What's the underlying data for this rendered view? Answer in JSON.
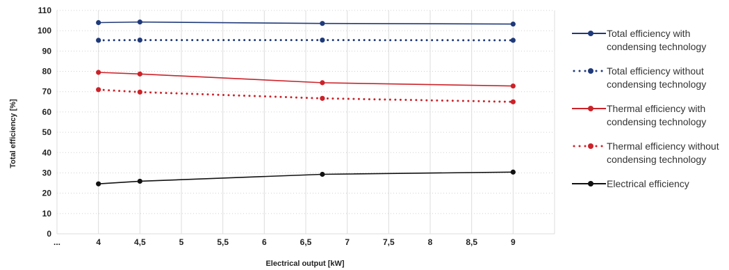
{
  "chart_data": {
    "type": "line",
    "xlabel": "Electrical output [kW]",
    "ylabel": "Total efficiency [%]",
    "x_ticks": [
      "...",
      "4",
      "4,5",
      "5",
      "5,5",
      "6",
      "6,5",
      "7",
      "7,5",
      "8",
      "8,5",
      "9"
    ],
    "y_ticks": [
      "0",
      "10",
      "20",
      "30",
      "40",
      "50",
      "60",
      "70",
      "80",
      "90",
      "100",
      "110"
    ],
    "xlim": [
      3.5,
      9.5
    ],
    "ylim": [
      0,
      110
    ],
    "grid": true,
    "legend_position": "right",
    "series": [
      {
        "name": "Total efficiency with condensing technology",
        "style": "solid",
        "color": "#1f3a7a",
        "x": [
          4,
          4.5,
          6.7,
          9
        ],
        "y": [
          104,
          104.3,
          103.6,
          103.3
        ]
      },
      {
        "name": "Total efficiency without condensing technology",
        "style": "dotted",
        "color": "#1f3a7a",
        "x": [
          4,
          4.5,
          6.7,
          9
        ],
        "y": [
          95.3,
          95.4,
          95.4,
          95.3
        ]
      },
      {
        "name": "Thermal efficiency with condensing technology",
        "style": "solid",
        "color": "#cc2229",
        "x": [
          4,
          4.5,
          6.7,
          9
        ],
        "y": [
          79.5,
          78.7,
          74.4,
          72.8
        ]
      },
      {
        "name": "Thermal efficiency without condensing technology",
        "style": "dotted",
        "color": "#cc2229",
        "x": [
          4,
          4.5,
          6.7,
          9
        ],
        "y": [
          71,
          69.8,
          66.7,
          65
        ]
      },
      {
        "name": "Electrical efficiency",
        "style": "solid",
        "color": "#111111",
        "x": [
          4,
          4.5,
          6.7,
          9
        ],
        "y": [
          24.6,
          25.9,
          29.3,
          30.4
        ]
      }
    ]
  }
}
